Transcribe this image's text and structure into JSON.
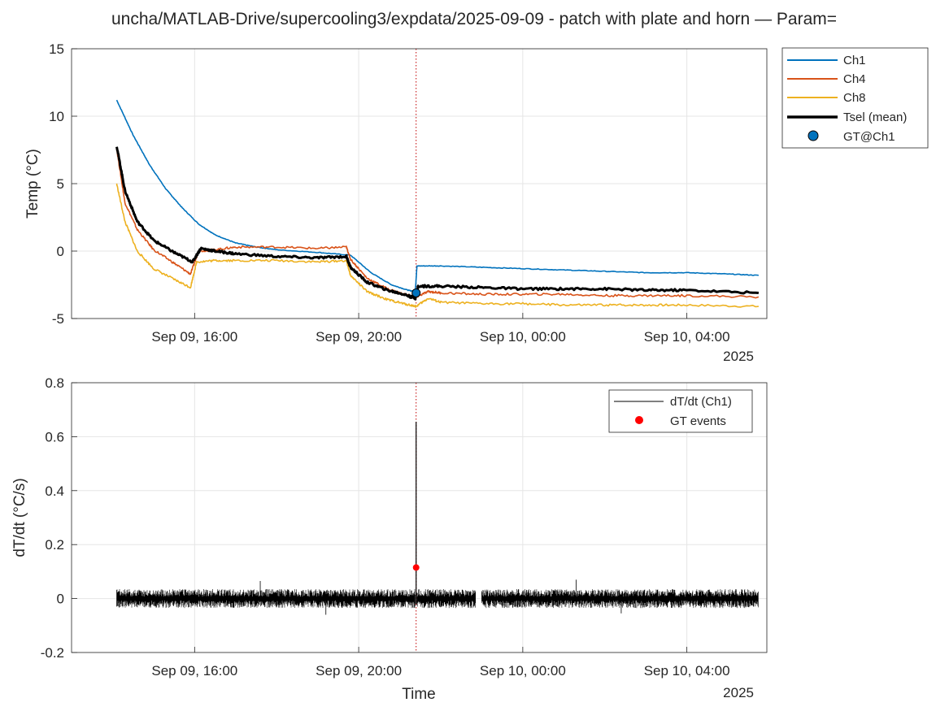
{
  "figure": {
    "title": "uncha/MATLAB-Drive/supercooling3/expdata/2025-09-09 - patch with plate and horn — Param=",
    "colors": {
      "ch1": "#0072BD",
      "ch4": "#D95319",
      "ch8": "#EDB120",
      "tsel": "#000000",
      "gt_point": "#0072BD",
      "gt_event": "#FF0000",
      "event_line": "#C00000",
      "grid": "#E5E5E5"
    }
  },
  "chart_data": [
    {
      "type": "line",
      "title": "",
      "xlabel": "",
      "ylabel": "Temp (°C)",
      "x_ticks": [
        "Sep 09, 16:00",
        "Sep 09, 20:00",
        "Sep 10, 00:00",
        "Sep 10, 04:00"
      ],
      "x_tick_hours": [
        16,
        20,
        24,
        28
      ],
      "x_year_label": "2025",
      "xlim_hours": [
        13.0,
        29.95
      ],
      "y_ticks": [
        "-5",
        "0",
        "5",
        "10",
        "15"
      ],
      "ylim": [
        -5,
        15
      ],
      "grid": true,
      "legend_position": "outside-top-right",
      "event_hour": 21.4,
      "legend": [
        "Ch1",
        "Ch4",
        "Ch8",
        "Tsel (mean)",
        "GT@Ch1"
      ],
      "series": [
        {
          "name": "Ch1",
          "color_key": "ch1",
          "x": [
            14.1,
            14.5,
            14.9,
            15.3,
            15.7,
            16.1,
            16.5,
            17.0,
            17.5,
            18.0,
            19.0,
            19.8,
            20.3,
            20.8,
            21.2,
            21.38,
            21.42,
            22.0,
            23.0,
            24.0,
            25.0,
            26.0,
            27.0,
            28.0,
            29.0,
            29.75
          ],
          "y": [
            11.2,
            8.6,
            6.4,
            4.6,
            3.2,
            2.0,
            1.2,
            0.6,
            0.3,
            0.1,
            -0.1,
            -0.3,
            -1.6,
            -2.5,
            -2.9,
            -3.0,
            -1.1,
            -1.1,
            -1.2,
            -1.3,
            -1.4,
            -1.5,
            -1.6,
            -1.6,
            -1.7,
            -1.8
          ]
        },
        {
          "name": "Ch4",
          "color_key": "ch4",
          "x": [
            14.1,
            14.3,
            14.6,
            15.0,
            15.5,
            15.9,
            16.1,
            16.5,
            17.0,
            18.0,
            19.0,
            19.7,
            19.8,
            20.2,
            20.7,
            21.1,
            21.4,
            21.7,
            22.0,
            23.0,
            24.0,
            25.0,
            26.0,
            27.0,
            28.0,
            29.75
          ],
          "y": [
            7.6,
            3.6,
            1.6,
            0.1,
            -0.9,
            -1.7,
            0.0,
            0.1,
            0.3,
            0.3,
            0.2,
            0.3,
            -0.6,
            -2.0,
            -2.8,
            -3.2,
            -3.4,
            -3.0,
            -3.1,
            -3.2,
            -3.2,
            -3.2,
            -3.3,
            -3.3,
            -3.3,
            -3.4
          ]
        },
        {
          "name": "Ch8",
          "color_key": "ch8",
          "x": [
            14.1,
            14.3,
            14.6,
            15.0,
            15.5,
            15.9,
            16.05,
            16.5,
            17.0,
            18.0,
            19.0,
            19.7,
            19.8,
            20.2,
            20.7,
            21.1,
            21.4,
            21.7,
            22.0,
            23.0,
            24.0,
            25.0,
            26.0,
            27.0,
            28.0,
            29.75
          ],
          "y": [
            5.0,
            2.2,
            0.0,
            -1.3,
            -2.1,
            -2.7,
            -0.8,
            -0.7,
            -0.7,
            -0.7,
            -0.8,
            -0.7,
            -1.8,
            -3.0,
            -3.6,
            -3.9,
            -4.1,
            -3.5,
            -3.8,
            -3.9,
            -3.9,
            -4.0,
            -4.0,
            -4.0,
            -4.0,
            -4.1
          ]
        },
        {
          "name": "Tsel (mean)",
          "color_key": "tsel",
          "x": [
            14.1,
            14.3,
            14.6,
            15.0,
            15.5,
            15.95,
            16.15,
            16.5,
            17.0,
            18.0,
            19.0,
            19.7,
            19.8,
            20.2,
            20.7,
            21.1,
            21.38,
            21.45,
            22.0,
            23.0,
            24.0,
            25.0,
            26.0,
            27.0,
            28.0,
            29.75
          ],
          "y": [
            7.8,
            4.5,
            2.2,
            0.8,
            -0.1,
            -0.8,
            0.2,
            0.0,
            -0.2,
            -0.4,
            -0.5,
            -0.4,
            -1.2,
            -2.3,
            -2.9,
            -3.2,
            -3.5,
            -2.6,
            -2.6,
            -2.7,
            -2.8,
            -2.8,
            -2.8,
            -2.9,
            -2.9,
            -3.1
          ]
        }
      ],
      "points": [
        {
          "name": "GT@Ch1",
          "x": 21.4,
          "y": -3.1,
          "color_key": "gt_point"
        }
      ]
    },
    {
      "type": "line",
      "title": "",
      "xlabel": "Time",
      "ylabel": "dT/dt (°C/s)",
      "x_ticks": [
        "Sep 09, 16:00",
        "Sep 09, 20:00",
        "Sep 10, 00:00",
        "Sep 10, 04:00"
      ],
      "x_tick_hours": [
        16,
        20,
        24,
        28
      ],
      "x_year_label": "2025",
      "xlim_hours": [
        13.0,
        29.95
      ],
      "y_ticks": [
        "-0.2",
        "0",
        "0.2",
        "0.4",
        "0.6",
        "0.8"
      ],
      "ylim": [
        -0.2,
        0.8
      ],
      "grid": true,
      "legend_position": "top-right",
      "event_hour": 21.4,
      "legend": [
        "dT/dt (Ch1)",
        "GT events"
      ],
      "noise_band": {
        "name": "dT/dt (Ch1)",
        "segments": [
          [
            14.1,
            21.38
          ],
          [
            21.42,
            22.85
          ],
          [
            23.0,
            29.75
          ]
        ],
        "amplitude": 0.035,
        "baseline": 0
      },
      "spikes": [
        {
          "x": 21.4,
          "y": 0.655
        }
      ],
      "points": [
        {
          "name": "GT events",
          "x": 21.4,
          "y": 0.115,
          "color_key": "gt_event"
        }
      ]
    }
  ]
}
